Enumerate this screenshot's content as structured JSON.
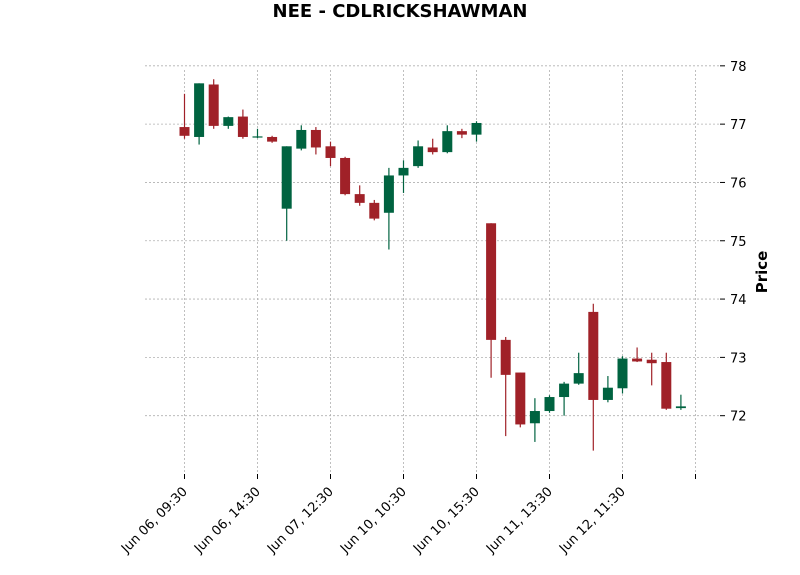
{
  "chart_data": {
    "type": "candlestick",
    "title": "NEE - CDLRICKSHAWMAN",
    "ylabel": "Price",
    "ylim": [
      71.0,
      78.1
    ],
    "grid": true,
    "colors": {
      "up": "#006340",
      "down": "#a02128"
    },
    "yticks": [
      72,
      73,
      74,
      75,
      76,
      77,
      78
    ],
    "xtick_labels": [
      {
        "index": 0,
        "label": "Jun 06, 09:30"
      },
      {
        "index": 5,
        "label": "Jun 06, 14:30"
      },
      {
        "index": 10,
        "label": "Jun 07, 12:30"
      },
      {
        "index": 15,
        "label": "Jun 10, 10:30"
      },
      {
        "index": 20,
        "label": "Jun 10, 15:30"
      },
      {
        "index": 25,
        "label": "Jun 11, 13:30"
      },
      {
        "index": 30,
        "label": "Jun 12, 11:30"
      },
      {
        "index": 35,
        "label": ""
      }
    ],
    "candles": [
      {
        "open": 76.95,
        "high": 77.52,
        "low": 76.75,
        "close": 76.8
      },
      {
        "open": 76.78,
        "high": 77.7,
        "low": 76.65,
        "close": 77.7
      },
      {
        "open": 77.68,
        "high": 77.77,
        "low": 76.92,
        "close": 76.97
      },
      {
        "open": 76.97,
        "high": 77.13,
        "low": 76.92,
        "close": 77.12
      },
      {
        "open": 77.13,
        "high": 77.25,
        "low": 76.75,
        "close": 76.78
      },
      {
        "open": 76.78,
        "high": 76.92,
        "low": 76.76,
        "close": 76.79
      },
      {
        "open": 76.78,
        "high": 76.8,
        "low": 76.68,
        "close": 76.7
      },
      {
        "open": 75.55,
        "high": 76.62,
        "low": 75.0,
        "close": 76.62
      },
      {
        "open": 76.58,
        "high": 76.98,
        "low": 76.55,
        "close": 76.9
      },
      {
        "open": 76.9,
        "high": 76.95,
        "low": 76.48,
        "close": 76.6
      },
      {
        "open": 76.62,
        "high": 76.7,
        "low": 76.28,
        "close": 76.42
      },
      {
        "open": 76.42,
        "high": 76.44,
        "low": 75.78,
        "close": 75.8
      },
      {
        "open": 75.8,
        "high": 75.95,
        "low": 75.6,
        "close": 75.65
      },
      {
        "open": 75.65,
        "high": 75.7,
        "low": 75.35,
        "close": 75.38
      },
      {
        "open": 75.48,
        "high": 76.25,
        "low": 74.85,
        "close": 76.12
      },
      {
        "open": 76.12,
        "high": 76.38,
        "low": 75.82,
        "close": 76.25
      },
      {
        "open": 76.28,
        "high": 76.72,
        "low": 76.25,
        "close": 76.62
      },
      {
        "open": 76.6,
        "high": 76.75,
        "low": 76.48,
        "close": 76.52
      },
      {
        "open": 76.52,
        "high": 76.98,
        "low": 76.5,
        "close": 76.88
      },
      {
        "open": 76.88,
        "high": 76.92,
        "low": 76.76,
        "close": 76.82
      },
      {
        "open": 76.82,
        "high": 77.05,
        "low": 76.7,
        "close": 77.02
      },
      {
        "open": 75.3,
        "high": 75.3,
        "low": 72.65,
        "close": 73.3
      },
      {
        "open": 73.3,
        "high": 73.35,
        "low": 71.65,
        "close": 72.7
      },
      {
        "open": 72.74,
        "high": 72.74,
        "low": 71.8,
        "close": 71.85
      },
      {
        "open": 71.87,
        "high": 72.3,
        "low": 71.55,
        "close": 72.08
      },
      {
        "open": 72.08,
        "high": 72.35,
        "low": 72.05,
        "close": 72.32
      },
      {
        "open": 72.32,
        "high": 72.58,
        "low": 72.0,
        "close": 72.55
      },
      {
        "open": 72.55,
        "high": 73.08,
        "low": 72.53,
        "close": 72.73
      },
      {
        "open": 73.78,
        "high": 73.92,
        "low": 71.4,
        "close": 72.27
      },
      {
        "open": 72.27,
        "high": 72.68,
        "low": 72.23,
        "close": 72.48
      },
      {
        "open": 72.47,
        "high": 73.02,
        "low": 72.38,
        "close": 72.98
      },
      {
        "open": 72.98,
        "high": 73.17,
        "low": 72.92,
        "close": 72.93
      },
      {
        "open": 72.96,
        "high": 73.08,
        "low": 72.52,
        "close": 72.9
      },
      {
        "open": 72.92,
        "high": 73.08,
        "low": 72.1,
        "close": 72.12
      },
      {
        "open": 72.13,
        "high": 72.36,
        "low": 72.1,
        "close": 72.16
      }
    ]
  }
}
